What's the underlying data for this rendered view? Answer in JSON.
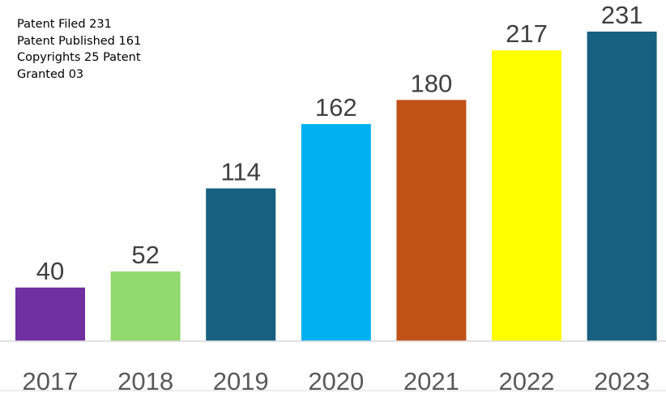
{
  "annotation": {
    "lines": [
      "Patent Filed 231",
      "Patent Published 161",
      "Copyrights 25 Patent",
      "Granted 03"
    ]
  },
  "chart_data": {
    "type": "bar",
    "categories": [
      "2017",
      "2018",
      "2019",
      "2020",
      "2021",
      "2022",
      "2023"
    ],
    "values": [
      40,
      52,
      114,
      162,
      180,
      217,
      231
    ],
    "colors": [
      "#7030A0",
      "#92D96F",
      "#17607F",
      "#00B0F0",
      "#C05218",
      "#FFFF00",
      "#17607F"
    ],
    "title": "",
    "xlabel": "",
    "ylabel": "",
    "ylim": [
      0,
      231
    ],
    "grid": false,
    "legend": "none",
    "data_labels": true,
    "axis_color": "#D9D9D9"
  }
}
